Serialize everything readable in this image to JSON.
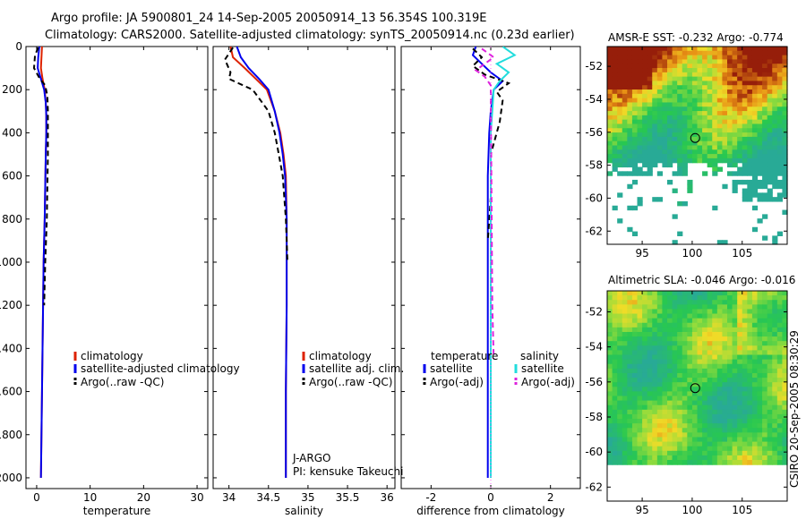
{
  "header": {
    "line1": "Argo profile: JA 5900801_24 14-Sep-2005 20050914_13 56.354S 100.319E",
    "line2": "Climatology: CARS2000. Satellite-adjusted climatology: synTS_20050914.nc (0.23d earlier)"
  },
  "footer": {
    "stamp": "CSIRO 20-Sep-2005 08:30:29"
  },
  "colors": {
    "climatology": "#dd2200",
    "satellite": "#0000ee",
    "argo": "#000000",
    "sal_satellite": "#22dddd",
    "sal_argo": "#dd22dd"
  },
  "chart_data": [
    {
      "type": "line",
      "id": "temperature",
      "xlabel": "temperature",
      "ylabel": "",
      "xlim": [
        -2,
        32
      ],
      "ylim": [
        0,
        2050
      ],
      "xticks": [
        0,
        10,
        20,
        30
      ],
      "yticks": [
        0,
        200,
        400,
        600,
        800,
        1000,
        1200,
        1400,
        1600,
        1800,
        2000
      ],
      "legend": [
        "climatology",
        "satellite-adjusted climatology",
        "Argo(..raw -QC)"
      ],
      "series": [
        {
          "name": "climatology",
          "style": "climatology",
          "x": [
            1.0,
            0.9,
            0.8,
            1.1,
            1.5,
            1.7,
            1.8,
            1.8,
            1.7,
            1.6,
            1.5,
            1.3,
            1.2,
            1.1,
            1.0,
            0.9,
            0.8
          ],
          "y": [
            0,
            50,
            100,
            150,
            200,
            260,
            320,
            400,
            500,
            650,
            800,
            1000,
            1200,
            1400,
            1600,
            1800,
            2000
          ]
        },
        {
          "name": "satellite-adjusted climatology",
          "style": "satellite",
          "x": [
            0.5,
            0.3,
            0.2,
            0.8,
            1.4,
            1.7,
            1.8,
            1.8,
            1.7,
            1.6,
            1.5,
            1.3,
            1.2,
            1.1,
            1.0,
            0.9,
            0.8
          ],
          "y": [
            0,
            50,
            100,
            150,
            200,
            260,
            320,
            400,
            500,
            650,
            800,
            1000,
            1200,
            1400,
            1600,
            1800,
            2000
          ]
        },
        {
          "name": "Argo(..raw -QC)",
          "style": "argo",
          "x": [
            0.3,
            -0.3,
            -0.5,
            0.6,
            1.6,
            2.0,
            2.1,
            2.1,
            2.1,
            2.0,
            1.9,
            1.6,
            1.4
          ],
          "y": [
            5,
            40,
            100,
            150,
            180,
            230,
            300,
            400,
            500,
            650,
            800,
            1000,
            1200
          ]
        }
      ]
    },
    {
      "type": "line",
      "id": "salinity",
      "xlabel": "salinity",
      "ylabel": "",
      "xlim": [
        33.8,
        36.1
      ],
      "ylim": [
        0,
        2050
      ],
      "xticks": [
        34,
        34.5,
        35,
        35.5,
        36
      ],
      "xticklabels": [
        "34",
        "34.5",
        "35",
        "35.5",
        "36"
      ],
      "legend": [
        "climatology",
        "satellite adj. clim.",
        "Argo(..raw -QC)"
      ],
      "annotations": [
        "J-ARGO",
        "PI: kensuke Takeuchi"
      ],
      "series": [
        {
          "name": "climatology",
          "style": "climatology",
          "x": [
            34.02,
            34.05,
            34.2,
            34.34,
            34.48,
            34.58,
            34.65,
            34.69,
            34.72,
            34.73,
            34.73,
            34.73,
            34.72,
            34.72
          ],
          "y": [
            0,
            50,
            100,
            150,
            200,
            300,
            400,
            500,
            600,
            800,
            1000,
            1200,
            1600,
            2000
          ]
        },
        {
          "name": "satellite adj. clim.",
          "style": "satellite",
          "x": [
            34.1,
            34.15,
            34.25,
            34.38,
            34.5,
            34.58,
            34.64,
            34.68,
            34.71,
            34.73,
            34.73,
            34.73,
            34.72,
            34.72
          ],
          "y": [
            0,
            50,
            100,
            150,
            200,
            300,
            400,
            500,
            600,
            800,
            1000,
            1200,
            1600,
            2000
          ]
        },
        {
          "name": "Argo(..raw -QC)",
          "style": "argo",
          "x": [
            34.05,
            33.95,
            34.02,
            34.0,
            34.12,
            34.3,
            34.4,
            34.5,
            34.58,
            34.63,
            34.68,
            34.72,
            34.74
          ],
          "y": [
            5,
            60,
            120,
            150,
            170,
            200,
            250,
            300,
            400,
            500,
            600,
            800,
            1000
          ]
        }
      ]
    },
    {
      "type": "line",
      "id": "difference",
      "xlabel": "difference from climatology",
      "ylabel": "",
      "xlim": [
        -3,
        3
      ],
      "ylim": [
        0,
        2050
      ],
      "xticks": [
        -2,
        0,
        2
      ],
      "legend_headers": [
        "temperature",
        "salinity"
      ],
      "legend": [
        "satellite",
        "Argo(-adj)",
        "satellite",
        "Argo(-adj)"
      ],
      "series": [
        {
          "name": "temperature satellite",
          "style": "satellite",
          "x": [
            -0.5,
            -0.6,
            -0.3,
            0.0,
            0.4,
            0.1,
            0.0,
            -0.05,
            -0.1,
            -0.1,
            -0.1,
            -0.1,
            -0.1,
            -0.1
          ],
          "y": [
            0,
            40,
            80,
            120,
            160,
            200,
            300,
            400,
            600,
            800,
            1000,
            1400,
            1800,
            2000
          ]
        },
        {
          "name": "temperature Argo(-adj)",
          "style": "argo",
          "x": [
            -0.6,
            -0.3,
            -0.6,
            -0.2,
            0.6,
            0.2,
            0.4,
            0.3,
            0.0,
            0.0,
            -0.1
          ],
          "y": [
            10,
            50,
            90,
            130,
            170,
            210,
            250,
            350,
            500,
            700,
            900
          ]
        },
        {
          "name": "salinity satellite",
          "style": "sal_satellite",
          "x": [
            0.4,
            0.8,
            0.2,
            0.6,
            0.3,
            0.1,
            0.05,
            0.0,
            0.0,
            0.0,
            0.0,
            0.0
          ],
          "y": [
            0,
            40,
            80,
            120,
            160,
            200,
            300,
            400,
            600,
            1000,
            1500,
            2000
          ]
        },
        {
          "name": "salinity Argo(-adj)",
          "style": "sal_argo",
          "x": [
            -0.3,
            0.1,
            -0.5,
            -0.2,
            0.0,
            0.0,
            0.05,
            0.1
          ],
          "y": [
            10,
            50,
            110,
            140,
            180,
            220,
            1200,
            1450
          ]
        }
      ]
    },
    {
      "type": "heatmap",
      "id": "sst_map",
      "title": "AMSR-E SST: -0.232 Argo: -0.774",
      "xlim": [
        91.5,
        109.5
      ],
      "ylim": [
        -62.8,
        -50.8
      ],
      "xticks": [
        95,
        100,
        105
      ],
      "yticks": [
        -52,
        -54,
        -56,
        -58,
        -60,
        -62
      ],
      "marker": {
        "x": 100.3,
        "y": -56.35
      }
    },
    {
      "type": "heatmap",
      "id": "sla_map",
      "title": "Altimetric SLA: -0.046 Argo: -0.016",
      "xlim": [
        91.5,
        109.5
      ],
      "ylim": [
        -62.8,
        -50.8
      ],
      "xticks": [
        95,
        100,
        105
      ],
      "yticks": [
        -52,
        -54,
        -56,
        -58,
        -60,
        -62
      ],
      "marker": {
        "x": 100.3,
        "y": -56.35
      }
    }
  ]
}
